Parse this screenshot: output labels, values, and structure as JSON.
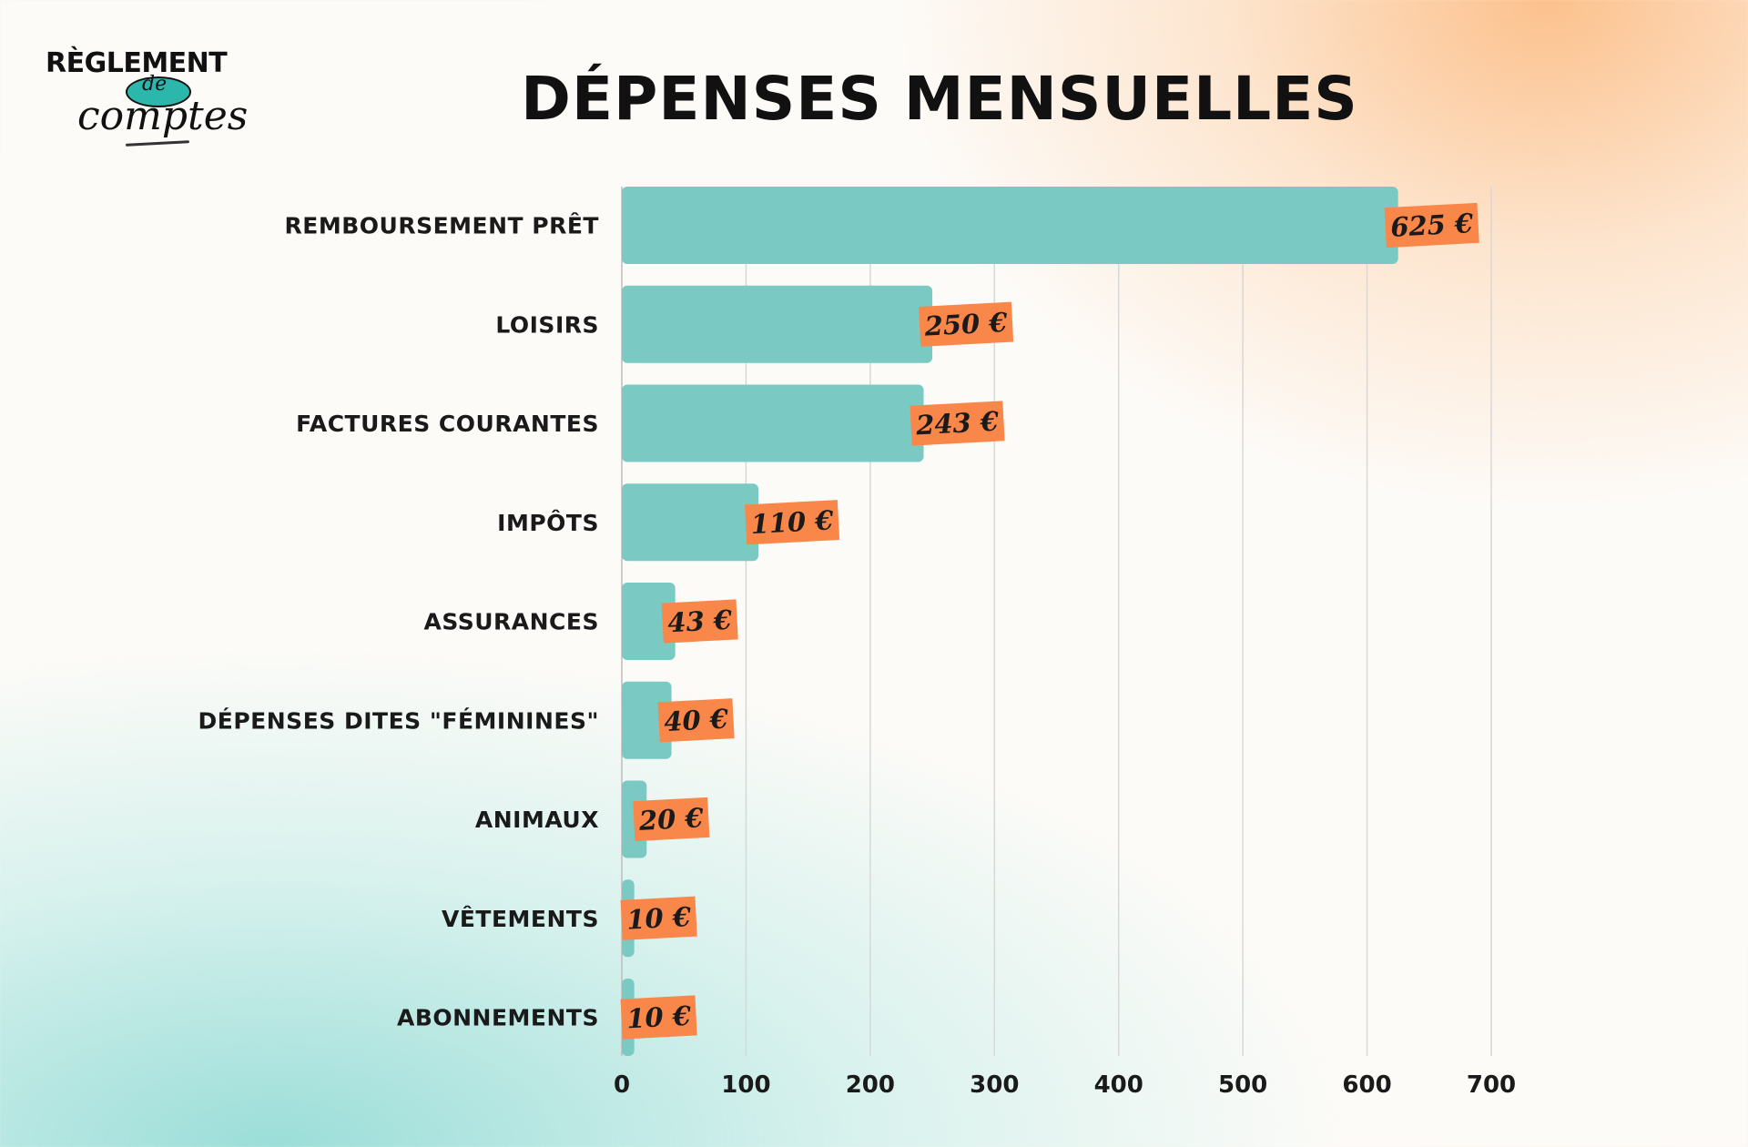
{
  "header": {
    "title": "DÉPENSES MENSUELLES"
  },
  "logo": {
    "line1": "RÈGLEMENT",
    "line2": "de",
    "line3": "comptes"
  },
  "chart_data": {
    "type": "bar",
    "orientation": "horizontal",
    "title": "DÉPENSES MENSUELLES",
    "categories": [
      "REMBOURSEMENT PRÊT",
      "LOISIRS",
      "FACTURES COURANTES",
      "IMPÔTS",
      "ASSURANCES",
      "DÉPENSES DITES \"FÉMININES\"",
      "ANIMAUX",
      "VÊTEMENTS",
      "ABONNEMENTS"
    ],
    "values": [
      625,
      250,
      243,
      110,
      43,
      40,
      20,
      10,
      10
    ],
    "value_labels": [
      "625 €",
      "250 €",
      "243 €",
      "110 €",
      "43 €",
      "40 €",
      "20 €",
      "10 €",
      "10 €"
    ],
    "xticks": [
      0,
      100,
      200,
      300,
      400,
      500,
      600,
      700
    ],
    "xlim": [
      0,
      700
    ],
    "xlabel": "",
    "ylabel": "",
    "grid": "vertical",
    "colors": {
      "bar": "#7bc9c3",
      "label_bg": "#f9874a",
      "grid": "#d8d8d8",
      "text": "#1a1a1a"
    }
  }
}
